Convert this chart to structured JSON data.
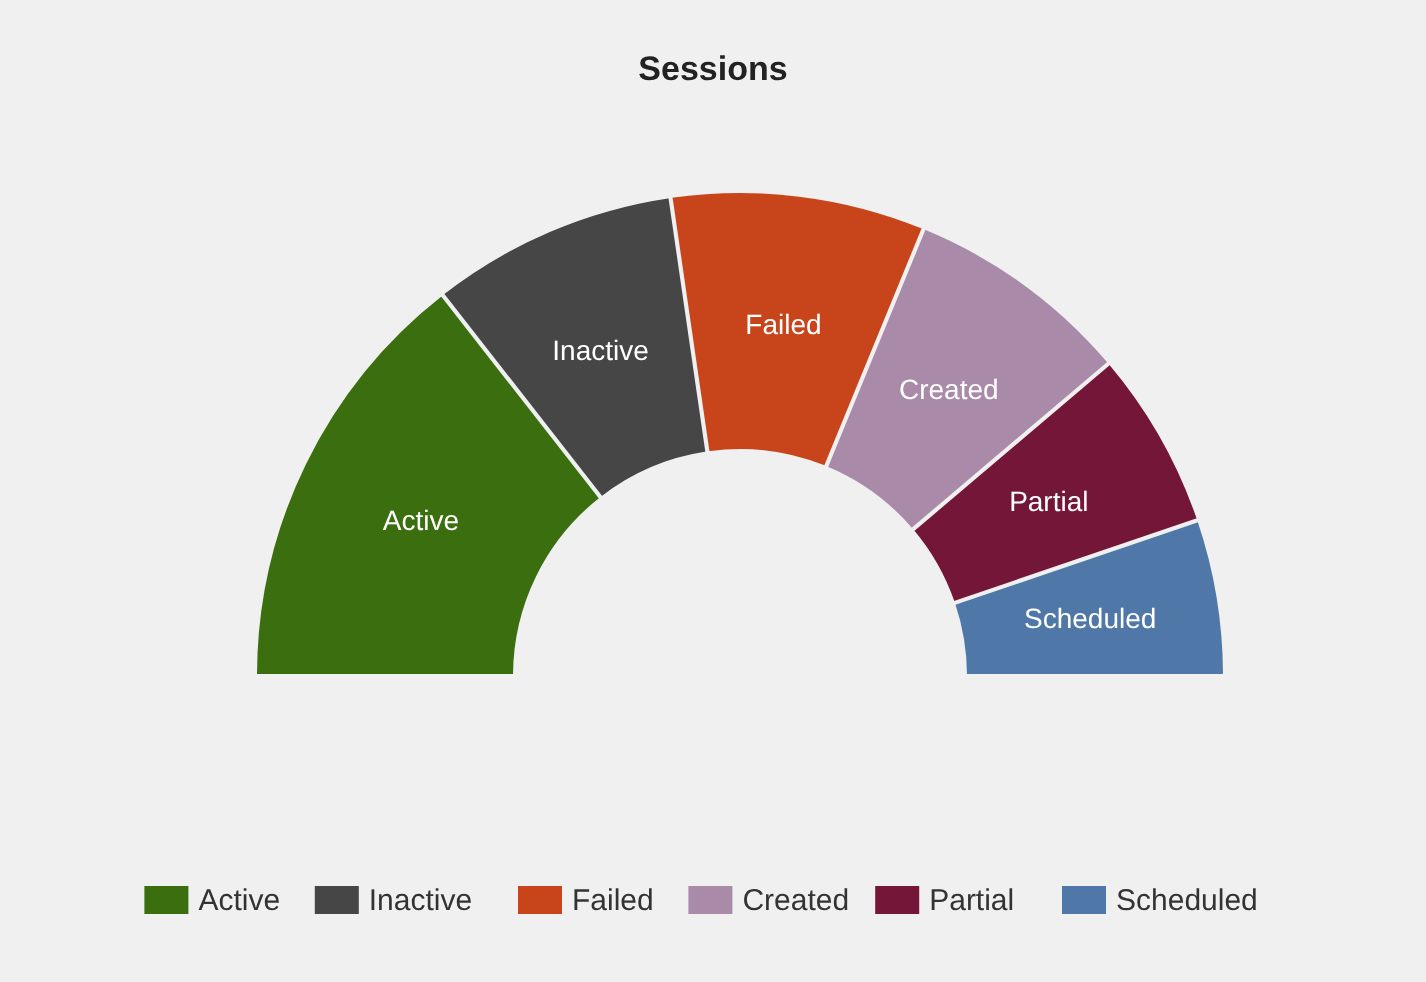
{
  "chart_data": {
    "type": "donut",
    "title": "Sessions",
    "categories": [
      "Active",
      "Inactive",
      "Failed",
      "Created",
      "Partial",
      "Scheduled"
    ],
    "values": [
      29,
      16.5,
      17,
      15.2,
      11.9,
      10.4
    ],
    "colors": [
      "#3a6e0f",
      "#464646",
      "#c8451b",
      "#a98aa8",
      "#731638",
      "#4f78a8"
    ],
    "legend": "bottom"
  }
}
